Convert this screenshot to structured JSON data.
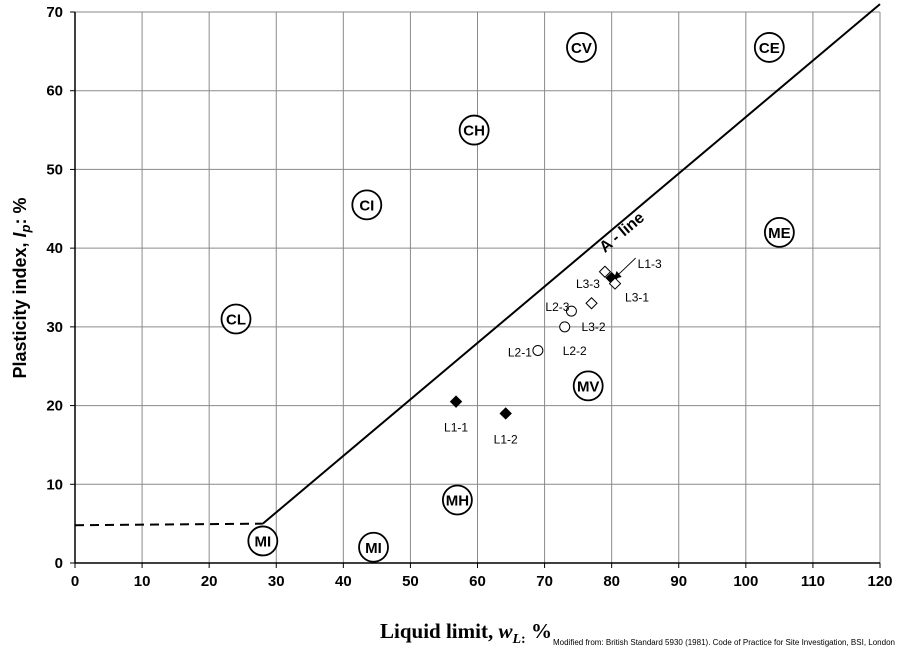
{
  "chart_data": {
    "type": "scatter",
    "title": "",
    "xlabel_parts": {
      "main": "Liquid limit, ",
      "var": "w",
      "sub": "L",
      "colon": ":",
      "unit": " %"
    },
    "ylabel_parts": {
      "main": "Plasticity index, ",
      "var": "I",
      "sub": "p",
      "unit": ": %"
    },
    "source_note": "Modified from: British Standard 5930 (1981). Code of Practice for Site Investigation, BSI, London",
    "xlim": [
      0,
      120
    ],
    "ylim": [
      0,
      70
    ],
    "xticks": [
      0,
      10,
      20,
      30,
      40,
      50,
      60,
      70,
      80,
      90,
      100,
      110,
      120
    ],
    "yticks": [
      0,
      10,
      20,
      30,
      40,
      50,
      60,
      70
    ],
    "grid": true,
    "a_line": {
      "label": "A - line",
      "points": [
        [
          28,
          5
        ],
        [
          120,
          71
        ]
      ],
      "dashed_segment": [
        [
          0,
          4.8
        ],
        [
          28,
          5
        ]
      ]
    },
    "zones": [
      {
        "label": "CL",
        "x": 24,
        "y": 31
      },
      {
        "label": "CI",
        "x": 43.5,
        "y": 45.5
      },
      {
        "label": "CH",
        "x": 59.5,
        "y": 55
      },
      {
        "label": "CV",
        "x": 75.5,
        "y": 65.5
      },
      {
        "label": "CE",
        "x": 103.5,
        "y": 65.5
      },
      {
        "label": "ME",
        "x": 105,
        "y": 42
      },
      {
        "label": "MV",
        "x": 76.5,
        "y": 22.5
      },
      {
        "label": "MH",
        "x": 57,
        "y": 8
      },
      {
        "label": "MI",
        "x": 44.5,
        "y": 2
      },
      {
        "label": "MI",
        "x": 28,
        "y": 2.8
      }
    ],
    "series": [
      {
        "marker": "filled-diamond",
        "points": [
          {
            "label": "L1-1",
            "x": 56.8,
            "y": 20.5
          },
          {
            "label": "L1-2",
            "x": 64.2,
            "y": 19
          },
          {
            "label": "L1-3",
            "x": 80,
            "y": 36.2
          }
        ]
      },
      {
        "marker": "open-circle",
        "points": [
          {
            "label": "L2-1",
            "x": 69,
            "y": 27
          },
          {
            "label": "L2-2",
            "x": 73,
            "y": 30
          },
          {
            "label": "L2-3",
            "x": 74,
            "y": 32
          }
        ]
      },
      {
        "marker": "open-diamond",
        "points": [
          {
            "label": "L3-1",
            "x": 80.5,
            "y": 35.5
          },
          {
            "label": "L3-2",
            "x": 77,
            "y": 33
          },
          {
            "label": "L3-3",
            "x": 79,
            "y": 37
          }
        ]
      }
    ]
  }
}
